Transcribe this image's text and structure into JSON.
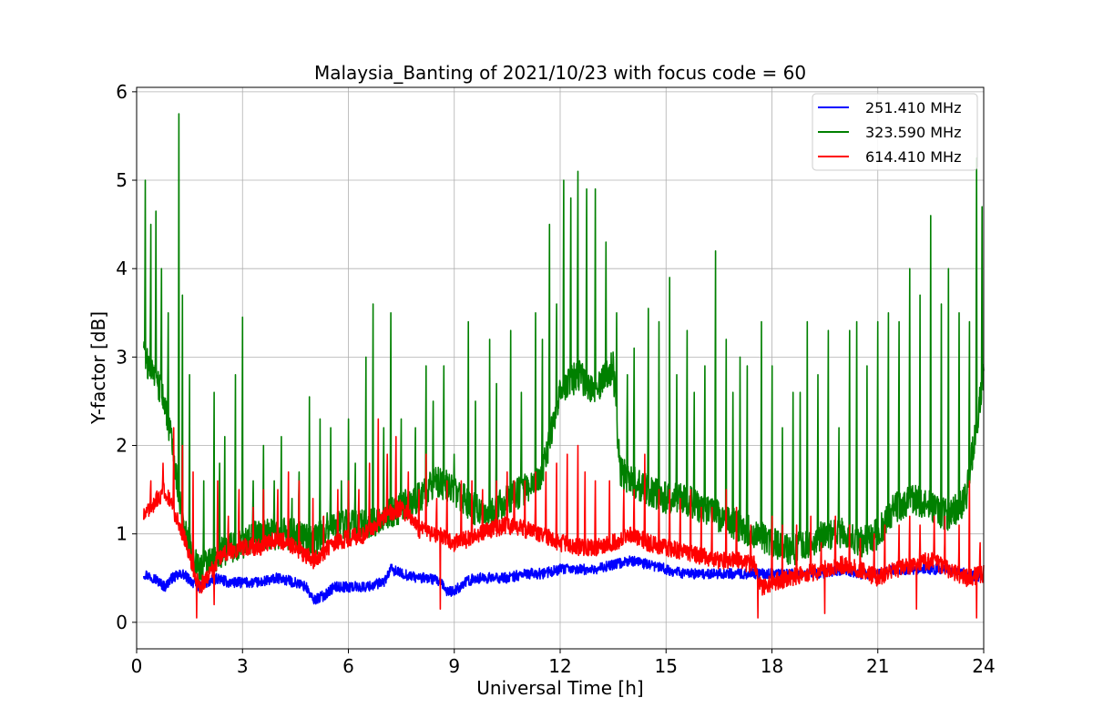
{
  "chart_data": {
    "type": "line",
    "title": "Malaysia_Banting of 2021/10/23 with focus code = 60",
    "xlabel": "Universal Time [h]",
    "ylabel": "Y-factor [dB]",
    "xlim": [
      0,
      24
    ],
    "ylim": [
      -0.3,
      6.05
    ],
    "xticks": [
      0,
      3,
      6,
      9,
      12,
      15,
      18,
      21,
      24
    ],
    "yticks": [
      0,
      1,
      2,
      3,
      4,
      5,
      6
    ],
    "grid": true,
    "legend_position": "upper-right",
    "series": [
      {
        "name": "251.410 MHz",
        "color": "#0000ff",
        "x": [
          0.2,
          0.5,
          0.8,
          1.0,
          1.3,
          1.6,
          1.8,
          2.0,
          2.3,
          2.6,
          3.0,
          3.5,
          4.0,
          4.5,
          4.8,
          5.0,
          5.3,
          5.6,
          6.0,
          6.5,
          7.0,
          7.2,
          7.5,
          8.0,
          8.3,
          8.6,
          8.8,
          9.0,
          9.3,
          9.6,
          10.0,
          10.5,
          11.0,
          11.5,
          12.0,
          12.5,
          13.0,
          13.5,
          14.0,
          14.5,
          15.0,
          15.5,
          16.0,
          16.5,
          17.0,
          17.5,
          18.0,
          18.5,
          19.0,
          19.5,
          20.0,
          20.5,
          21.0,
          21.5,
          22.0,
          22.5,
          23.0,
          23.5,
          24.0
        ],
        "y": [
          0.55,
          0.5,
          0.4,
          0.5,
          0.55,
          0.45,
          0.4,
          0.45,
          0.5,
          0.45,
          0.45,
          0.45,
          0.5,
          0.45,
          0.4,
          0.25,
          0.3,
          0.4,
          0.4,
          0.4,
          0.45,
          0.6,
          0.55,
          0.5,
          0.5,
          0.45,
          0.35,
          0.35,
          0.45,
          0.5,
          0.5,
          0.5,
          0.55,
          0.55,
          0.6,
          0.6,
          0.6,
          0.65,
          0.7,
          0.65,
          0.6,
          0.55,
          0.55,
          0.55,
          0.55,
          0.55,
          0.55,
          0.55,
          0.55,
          0.55,
          0.6,
          0.55,
          0.55,
          0.6,
          0.6,
          0.6,
          0.6,
          0.55,
          0.5
        ],
        "noise": 0.06
      },
      {
        "name": "323.590 MHz",
        "color": "#008000",
        "x": [
          0.2,
          0.5,
          0.8,
          1.0,
          1.3,
          1.6,
          1.8,
          2.0,
          2.5,
          3.0,
          3.5,
          4.0,
          4.5,
          5.0,
          5.5,
          6.0,
          6.5,
          7.0,
          7.5,
          8.0,
          8.5,
          9.0,
          9.5,
          10.0,
          10.5,
          11.0,
          11.5,
          12.0,
          12.5,
          13.0,
          13.5,
          13.7,
          14.0,
          14.5,
          15.0,
          15.5,
          16.0,
          16.5,
          17.0,
          17.5,
          18.0,
          18.5,
          19.0,
          19.5,
          20.0,
          20.5,
          21.0,
          21.5,
          22.0,
          22.5,
          23.0,
          23.5,
          24.0
        ],
        "y": [
          3.0,
          2.8,
          2.5,
          2.0,
          1.2,
          0.7,
          0.6,
          0.7,
          0.8,
          0.9,
          1.0,
          1.0,
          1.0,
          0.9,
          1.1,
          1.1,
          1.1,
          1.2,
          1.3,
          1.4,
          1.6,
          1.5,
          1.3,
          1.2,
          1.4,
          1.5,
          1.7,
          2.6,
          2.8,
          2.6,
          2.9,
          1.7,
          1.6,
          1.5,
          1.4,
          1.4,
          1.3,
          1.2,
          1.1,
          1.0,
          0.9,
          0.8,
          0.9,
          1.0,
          1.0,
          0.9,
          1.0,
          1.3,
          1.4,
          1.3,
          1.2,
          1.4,
          2.8
        ],
        "noise": 0.18,
        "spikes": [
          [
            0.25,
            5.0
          ],
          [
            0.4,
            4.5
          ],
          [
            0.55,
            4.65
          ],
          [
            0.7,
            4.0
          ],
          [
            0.9,
            3.5
          ],
          [
            1.2,
            5.75
          ],
          [
            1.3,
            3.7
          ],
          [
            1.5,
            2.8
          ],
          [
            1.9,
            1.6
          ],
          [
            2.2,
            2.6
          ],
          [
            2.35,
            1.8
          ],
          [
            2.5,
            2.1
          ],
          [
            2.8,
            2.8
          ],
          [
            3.0,
            3.45
          ],
          [
            3.3,
            1.6
          ],
          [
            3.6,
            2.0
          ],
          [
            3.9,
            1.6
          ],
          [
            4.1,
            2.1
          ],
          [
            4.4,
            1.4
          ],
          [
            4.6,
            1.7
          ],
          [
            4.9,
            2.55
          ],
          [
            5.2,
            2.3
          ],
          [
            5.5,
            2.2
          ],
          [
            5.8,
            1.6
          ],
          [
            6.0,
            2.3
          ],
          [
            6.2,
            1.8
          ],
          [
            6.5,
            3.0
          ],
          [
            6.7,
            3.6
          ],
          [
            7.0,
            2.2
          ],
          [
            7.2,
            3.5
          ],
          [
            7.5,
            2.3
          ],
          [
            7.9,
            2.2
          ],
          [
            8.2,
            2.9
          ],
          [
            8.4,
            2.5
          ],
          [
            8.7,
            2.9
          ],
          [
            9.0,
            1.9
          ],
          [
            9.4,
            3.4
          ],
          [
            9.6,
            2.5
          ],
          [
            10.0,
            3.2
          ],
          [
            10.2,
            2.7
          ],
          [
            10.6,
            3.3
          ],
          [
            10.9,
            2.6
          ],
          [
            11.3,
            3.5
          ],
          [
            11.5,
            3.2
          ],
          [
            11.7,
            4.5
          ],
          [
            11.9,
            3.6
          ],
          [
            12.1,
            5.0
          ],
          [
            12.3,
            4.8
          ],
          [
            12.5,
            5.1
          ],
          [
            12.75,
            4.9
          ],
          [
            13.0,
            4.9
          ],
          [
            13.3,
            4.3
          ],
          [
            13.6,
            3.5
          ],
          [
            13.9,
            2.8
          ],
          [
            14.1,
            3.1
          ],
          [
            14.5,
            3.55
          ],
          [
            14.8,
            3.4
          ],
          [
            15.1,
            3.9
          ],
          [
            15.3,
            2.8
          ],
          [
            15.6,
            3.3
          ],
          [
            15.8,
            2.6
          ],
          [
            16.1,
            2.9
          ],
          [
            16.4,
            4.2
          ],
          [
            16.7,
            3.2
          ],
          [
            16.9,
            2.6
          ],
          [
            17.1,
            3.0
          ],
          [
            17.3,
            2.9
          ],
          [
            17.7,
            3.4
          ],
          [
            18.0,
            2.9
          ],
          [
            18.3,
            2.2
          ],
          [
            18.6,
            2.6
          ],
          [
            18.8,
            2.6
          ],
          [
            19.0,
            3.4
          ],
          [
            19.3,
            2.8
          ],
          [
            19.6,
            3.3
          ],
          [
            19.9,
            2.2
          ],
          [
            20.2,
            3.3
          ],
          [
            20.4,
            3.4
          ],
          [
            20.7,
            2.9
          ],
          [
            21.0,
            3.4
          ],
          [
            21.3,
            3.5
          ],
          [
            21.6,
            3.4
          ],
          [
            21.9,
            4.0
          ],
          [
            22.2,
            3.7
          ],
          [
            22.5,
            4.6
          ],
          [
            22.8,
            3.6
          ],
          [
            23.0,
            4.0
          ],
          [
            23.3,
            3.5
          ],
          [
            23.6,
            3.4
          ],
          [
            23.8,
            5.25
          ],
          [
            23.95,
            4.7
          ]
        ]
      },
      {
        "name": "614.410 MHz",
        "color": "#ff0000",
        "x": [
          0.2,
          0.4,
          0.6,
          0.8,
          1.0,
          1.2,
          1.4,
          1.6,
          1.8,
          2.0,
          2.3,
          2.6,
          3.0,
          3.5,
          4.0,
          4.5,
          5.0,
          5.3,
          5.6,
          6.0,
          6.5,
          7.0,
          7.5,
          8.0,
          8.5,
          9.0,
          9.5,
          10.0,
          10.5,
          11.0,
          11.5,
          12.0,
          12.5,
          13.0,
          13.5,
          14.0,
          14.5,
          15.0,
          15.5,
          16.0,
          16.5,
          17.0,
          17.5,
          17.7,
          18.0,
          18.5,
          19.0,
          19.5,
          20.0,
          20.5,
          21.0,
          21.5,
          22.0,
          22.5,
          23.0,
          23.5,
          24.0
        ],
        "y": [
          1.2,
          1.3,
          1.4,
          1.5,
          1.3,
          1.1,
          0.9,
          0.6,
          0.4,
          0.5,
          0.7,
          0.8,
          0.85,
          0.85,
          0.95,
          0.85,
          0.7,
          0.8,
          0.9,
          0.95,
          1.0,
          1.2,
          1.3,
          1.05,
          1.0,
          0.9,
          0.95,
          1.05,
          1.1,
          1.05,
          1.0,
          0.9,
          0.85,
          0.85,
          0.9,
          1.0,
          0.9,
          0.85,
          0.8,
          0.75,
          0.7,
          0.7,
          0.65,
          0.4,
          0.45,
          0.5,
          0.55,
          0.6,
          0.65,
          0.6,
          0.5,
          0.6,
          0.65,
          0.7,
          0.6,
          0.5,
          0.55
        ],
        "noise": 0.1,
        "spikes": [
          [
            0.4,
            1.6
          ],
          [
            0.75,
            1.8
          ],
          [
            1.05,
            2.2
          ],
          [
            1.3,
            2.0
          ],
          [
            1.6,
            1.7
          ],
          [
            2.3,
            1.6
          ],
          [
            2.6,
            1.2
          ],
          [
            2.9,
            1.5
          ],
          [
            3.3,
            1.3
          ],
          [
            3.6,
            1.5
          ],
          [
            4.0,
            1.5
          ],
          [
            4.3,
            1.7
          ],
          [
            4.6,
            1.6
          ],
          [
            5.0,
            1.4
          ],
          [
            5.3,
            1.2
          ],
          [
            5.7,
            1.5
          ],
          [
            6.0,
            1.6
          ],
          [
            6.3,
            1.5
          ],
          [
            6.6,
            1.8
          ],
          [
            6.85,
            2.3
          ],
          [
            7.1,
            1.9
          ],
          [
            7.35,
            2.1
          ],
          [
            7.7,
            1.7
          ],
          [
            8.0,
            1.5
          ],
          [
            8.2,
            1.9
          ],
          [
            8.5,
            1.4
          ],
          [
            8.8,
            1.6
          ],
          [
            9.2,
            1.6
          ],
          [
            9.5,
            1.6
          ],
          [
            9.8,
            1.5
          ],
          [
            10.2,
            1.6
          ],
          [
            10.5,
            1.7
          ],
          [
            10.7,
            1.6
          ],
          [
            11.0,
            1.6
          ],
          [
            11.3,
            1.7
          ],
          [
            11.6,
            1.7
          ],
          [
            11.9,
            1.8
          ],
          [
            12.2,
            1.9
          ],
          [
            12.5,
            2.0
          ],
          [
            12.7,
            1.7
          ],
          [
            13.0,
            1.6
          ],
          [
            13.4,
            1.6
          ],
          [
            13.8,
            1.5
          ],
          [
            14.1,
            1.5
          ],
          [
            14.4,
            1.9
          ],
          [
            14.8,
            1.5
          ],
          [
            15.1,
            1.5
          ],
          [
            15.4,
            1.4
          ],
          [
            15.7,
            1.5
          ],
          [
            16.0,
            1.3
          ],
          [
            16.3,
            1.3
          ],
          [
            16.7,
            1.5
          ],
          [
            17.0,
            1.3
          ],
          [
            17.4,
            1.1
          ],
          [
            18.0,
            1.2
          ],
          [
            18.3,
            1.1
          ],
          [
            18.7,
            1.1
          ],
          [
            19.1,
            1.2
          ],
          [
            19.4,
            0.9
          ],
          [
            19.8,
            1.2
          ],
          [
            20.2,
            1.1
          ],
          [
            20.5,
            0.95
          ],
          [
            20.9,
            1.0
          ],
          [
            21.2,
            1.1
          ],
          [
            21.6,
            1.1
          ],
          [
            21.9,
            1.2
          ],
          [
            22.2,
            1.1
          ],
          [
            22.6,
            1.2
          ],
          [
            22.9,
            1.2
          ],
          [
            23.3,
            1.1
          ],
          [
            23.6,
            1.6
          ],
          [
            23.9,
            0.9
          ]
        ],
        "dips": [
          [
            1.7,
            0.05
          ],
          [
            2.2,
            0.2
          ],
          [
            8.6,
            0.15
          ],
          [
            17.6,
            0.05
          ],
          [
            19.5,
            0.1
          ],
          [
            22.1,
            0.15
          ],
          [
            23.8,
            0.05
          ]
        ]
      }
    ]
  }
}
